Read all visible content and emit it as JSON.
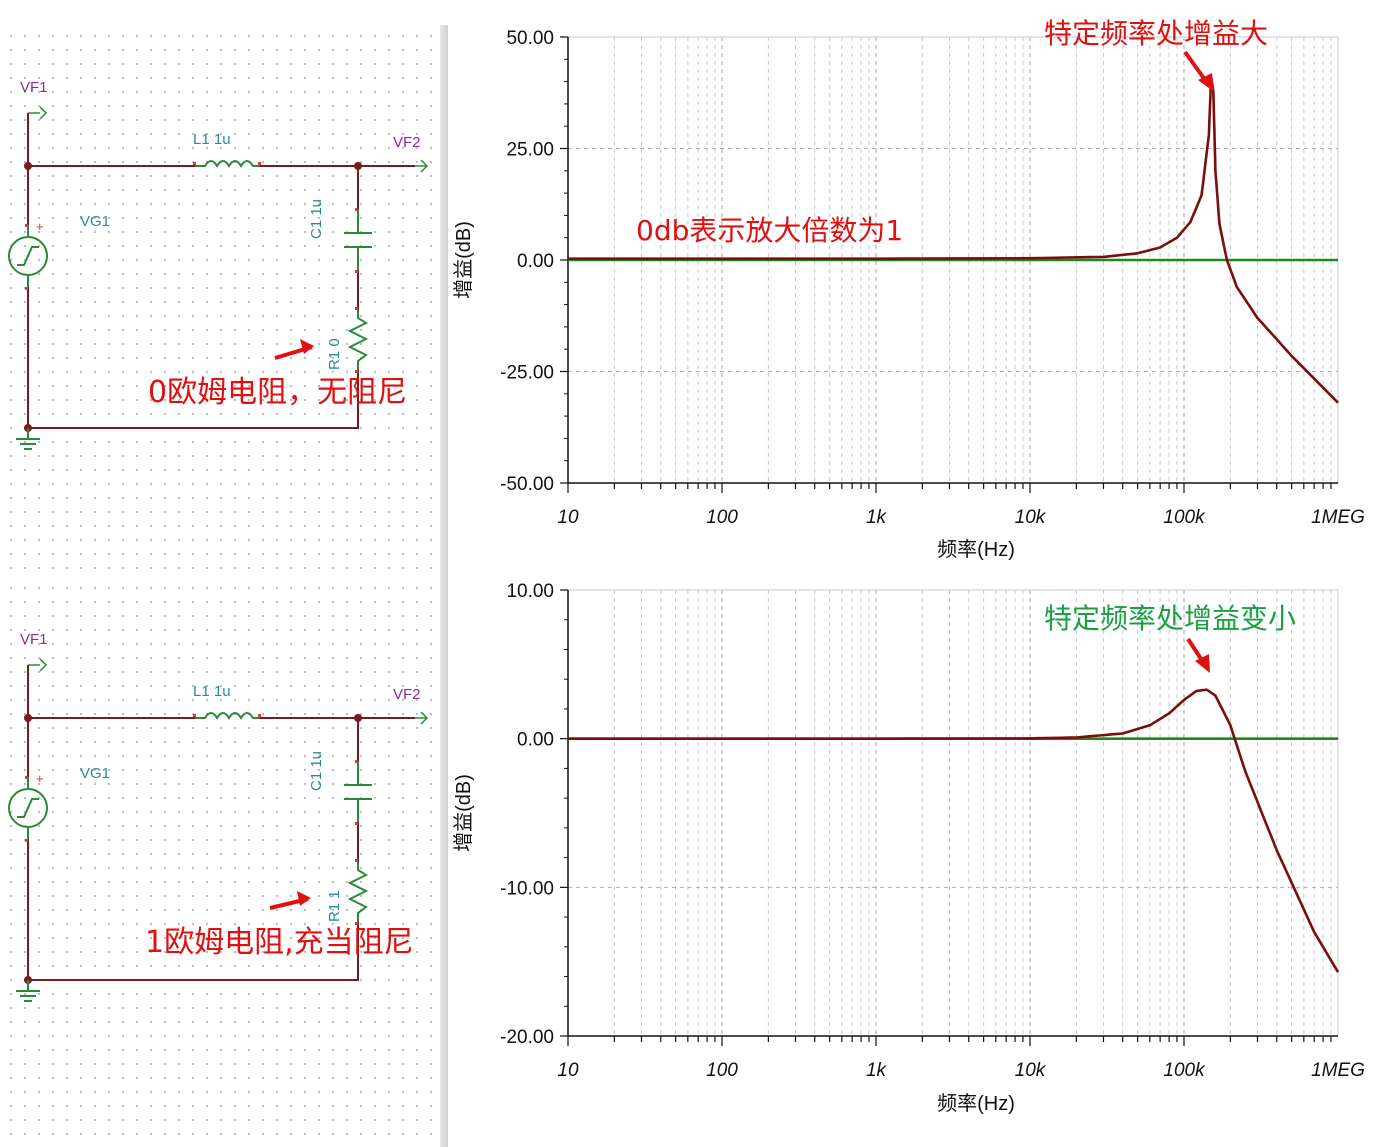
{
  "colors": {
    "wire": "#7a1a1a",
    "component": "#2a8a3a",
    "pin": "#d23c3c",
    "annotation_red": "#e01010",
    "annotation_green": "#1aa040",
    "trace_gain": "#7a0d0d",
    "trace_ref": "#1b8a1b"
  },
  "schematics": [
    {
      "vf1": "VF1",
      "vf2": "VF2",
      "vg1": "VG1",
      "inductor": "L1 1u",
      "capacitor": "C1 1u",
      "resistor": "R1 0",
      "annotation": "0欧姆电阻，无阻尼",
      "source_plus": "+"
    },
    {
      "vf1": "VF1",
      "vf2": "VF2",
      "vg1": "VG1",
      "inductor": "L1 1u",
      "capacitor": "C1 1u",
      "resistor": "R1 1",
      "annotation": "1欧姆电阻,充当阻尼",
      "source_plus": "+"
    }
  ],
  "chart_data": [
    {
      "type": "line",
      "xscale": "log",
      "xlabel": "频率(Hz)",
      "ylabel": "增益(dB)",
      "xlim": [
        10,
        1000000
      ],
      "ylim": [
        -50,
        50
      ],
      "x_ticks": [
        "10",
        "100",
        "1k",
        "10k",
        "100k",
        "1MEG"
      ],
      "y_ticks": [
        "50.00",
        "25.00",
        "0.00",
        "-25.00",
        "-50.00"
      ],
      "grid": true,
      "annotations": [
        {
          "text": "特定频率处增益大",
          "color": "red"
        },
        {
          "text": "0db表示放大倍数为1",
          "color": "red"
        }
      ],
      "series": [
        {
          "color": "dark-red",
          "x": [
            10,
            1000,
            10000,
            30000,
            50000,
            70000,
            90000,
            110000,
            130000,
            145000,
            150000,
            155000,
            160000,
            170000,
            190000,
            220000,
            300000,
            500000,
            1000000
          ],
          "y": [
            0.3,
            0.3,
            0.4,
            0.7,
            1.5,
            2.8,
            5.0,
            8.5,
            14.5,
            28.0,
            41.0,
            38.0,
            20.0,
            8.0,
            0.0,
            -6.0,
            -13.0,
            -21.5,
            -32.0
          ]
        },
        {
          "color": "green",
          "x": [
            10,
            1000000
          ],
          "y": [
            0,
            0
          ]
        }
      ]
    },
    {
      "type": "line",
      "xscale": "log",
      "xlabel": "频率(Hz)",
      "ylabel": "增益(dB)",
      "xlim": [
        10,
        1000000
      ],
      "ylim": [
        -20,
        10
      ],
      "x_ticks": [
        "10",
        "100",
        "1k",
        "10k",
        "100k",
        "1MEG"
      ],
      "y_ticks": [
        "10.00",
        "0.00",
        "-10.00",
        "-20.00"
      ],
      "grid": true,
      "annotations": [
        {
          "text": "特定频率处增益变小",
          "color": "green"
        }
      ],
      "series": [
        {
          "color": "dark-red",
          "x": [
            10,
            1000,
            10000,
            20000,
            40000,
            60000,
            80000,
            100000,
            120000,
            140000,
            160000,
            200000,
            250000,
            400000,
            700000,
            1000000
          ],
          "y": [
            0,
            0,
            0.02,
            0.08,
            0.35,
            0.9,
            1.7,
            2.6,
            3.2,
            3.3,
            2.9,
            0.9,
            -2.2,
            -7.5,
            -13.0,
            -15.7
          ]
        },
        {
          "color": "green",
          "x": [
            10,
            1000000
          ],
          "y": [
            0,
            0
          ]
        }
      ]
    }
  ]
}
